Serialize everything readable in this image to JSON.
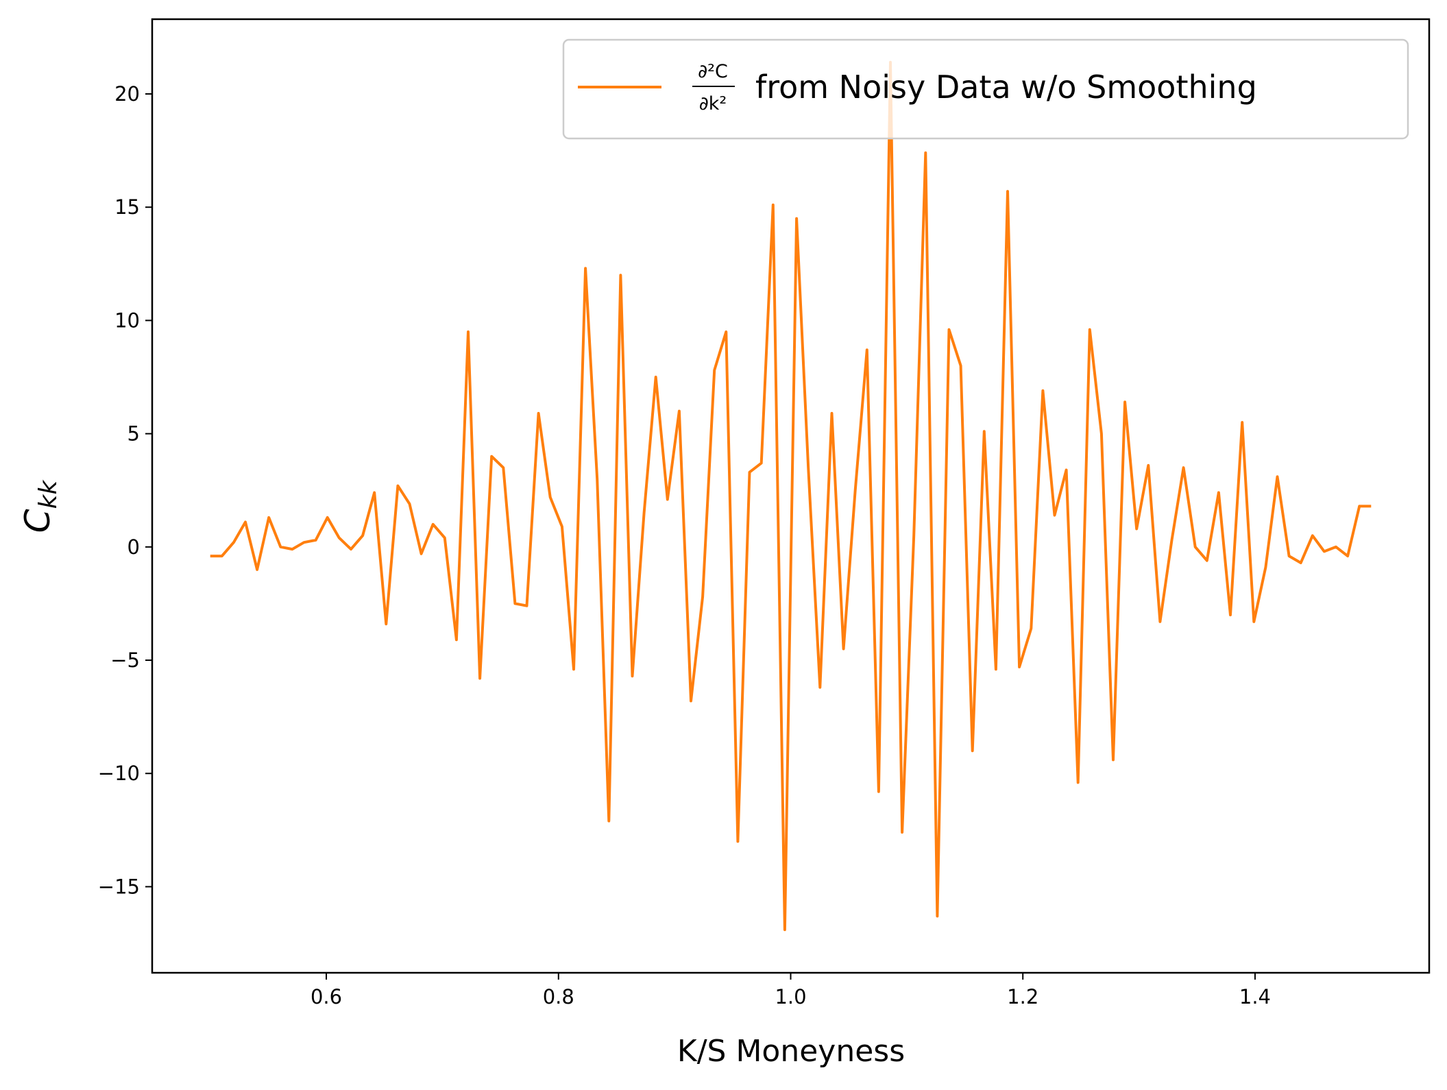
{
  "chart_data": {
    "type": "line",
    "xlabel": "K/S Moneyness",
    "ylabel": "C",
    "ylabel_sub": "kk",
    "xlim": [
      0.45,
      1.55
    ],
    "ylim": [
      -18.8,
      23.3
    ],
    "x_ticks": [
      0.6,
      0.8,
      1.0,
      1.2,
      1.4
    ],
    "x_tick_labels": [
      "0.6",
      "0.8",
      "1.0",
      "1.2",
      "1.4"
    ],
    "y_ticks": [
      -15,
      -10,
      -5,
      0,
      5,
      10,
      15,
      20
    ],
    "y_tick_labels": [
      "−15",
      "−10",
      "−5",
      "0",
      "5",
      "10",
      "15",
      "20"
    ],
    "grid": false,
    "legend_position": "top-right",
    "series": [
      {
        "name": "∂²C/∂k² from Noisy Data w/o Smoothing",
        "legend_numerator": "∂²C",
        "legend_denominator": "∂k²",
        "legend_text": "from Noisy Data w/o Smoothing",
        "color": "#ff7f0e",
        "x": [
          0.5,
          0.5101,
          0.5202,
          0.5303,
          0.5404,
          0.5505,
          0.5606,
          0.5707,
          0.5808,
          0.5909,
          0.601,
          0.6111,
          0.6212,
          0.6313,
          0.6414,
          0.6515,
          0.6616,
          0.6717,
          0.6818,
          0.6919,
          0.702,
          0.7121,
          0.7222,
          0.7323,
          0.7424,
          0.7525,
          0.7626,
          0.7727,
          0.7828,
          0.7929,
          0.803,
          0.8131,
          0.8232,
          0.8333,
          0.8434,
          0.8535,
          0.8636,
          0.8737,
          0.8838,
          0.8939,
          0.904,
          0.9141,
          0.9242,
          0.9343,
          0.9444,
          0.9545,
          0.9646,
          0.9747,
          0.9848,
          0.9949,
          1.0051,
          1.0152,
          1.0253,
          1.0354,
          1.0455,
          1.0556,
          1.0657,
          1.0758,
          1.0859,
          1.096,
          1.1061,
          1.1162,
          1.1263,
          1.1364,
          1.1465,
          1.1566,
          1.1667,
          1.1768,
          1.1869,
          1.197,
          1.2071,
          1.2172,
          1.2273,
          1.2374,
          1.2475,
          1.2576,
          1.2677,
          1.2778,
          1.2879,
          1.298,
          1.3081,
          1.3182,
          1.3283,
          1.3384,
          1.3485,
          1.3586,
          1.3687,
          1.3788,
          1.3889,
          1.399,
          1.4091,
          1.4192,
          1.4293,
          1.4394,
          1.4495,
          1.4596,
          1.4697,
          1.4798,
          1.4899,
          1.5
        ],
        "y": [
          -0.4,
          -0.4,
          0.2,
          1.1,
          -1.0,
          1.3,
          0.0,
          -0.1,
          0.2,
          0.3,
          1.3,
          0.4,
          -0.1,
          0.5,
          2.4,
          -3.4,
          2.7,
          1.9,
          -0.3,
          1.0,
          0.4,
          -4.1,
          9.5,
          -5.8,
          4.0,
          3.5,
          -2.5,
          -2.6,
          5.9,
          2.2,
          0.9,
          -5.4,
          12.3,
          3.0,
          -12.1,
          12.0,
          -5.7,
          1.5,
          7.5,
          2.1,
          6.0,
          -6.8,
          -2.2,
          7.8,
          9.5,
          -13.0,
          3.3,
          3.7,
          15.1,
          -16.9,
          14.5,
          3.5,
          -6.2,
          5.9,
          -4.5,
          2.5,
          8.7,
          -10.8,
          21.4,
          -12.6,
          0.5,
          17.4,
          -16.3,
          9.6,
          8.0,
          -9.0,
          5.1,
          -5.4,
          15.7,
          -5.3,
          -3.6,
          6.9,
          1.4,
          3.4,
          -10.4,
          9.6,
          5.0,
          -9.4,
          6.4,
          0.8,
          3.6,
          -3.3,
          0.3,
          3.5,
          0.0,
          -0.6,
          2.4,
          -3.0,
          5.5,
          -3.3,
          -0.9,
          3.1,
          -0.4,
          -0.7,
          0.5,
          -0.2,
          0.0,
          -0.4,
          1.8,
          1.8
        ]
      }
    ]
  }
}
